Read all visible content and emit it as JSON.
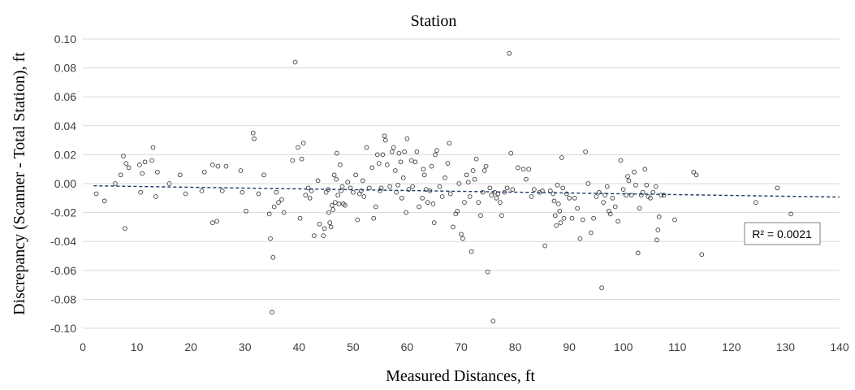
{
  "chart_data": {
    "type": "scatter",
    "title": "Station",
    "xlabel": "Measured Distances, ft",
    "ylabel": "Discrepancy (Scanner - Total Station), ft",
    "xlim": [
      0,
      140
    ],
    "ylim": [
      -0.1,
      0.1
    ],
    "x_ticks": [
      "0",
      "10",
      "20",
      "30",
      "40",
      "50",
      "60",
      "70",
      "80",
      "90",
      "100",
      "110",
      "120",
      "130",
      "140"
    ],
    "y_ticks": [
      "0.10",
      "0.08",
      "0.06",
      "0.04",
      "0.02",
      "0.00",
      "-0.02",
      "-0.04",
      "-0.06",
      "-0.08",
      "-0.10"
    ],
    "grid": "horizontal",
    "trendline": {
      "type": "linear",
      "x": [
        2,
        140
      ],
      "y": [
        -0.0015,
        -0.0093
      ]
    },
    "annotation": "R² = 0.0021",
    "points": [
      [
        2.5,
        -0.007
      ],
      [
        4,
        -0.012
      ],
      [
        6,
        0.0
      ],
      [
        7,
        0.006
      ],
      [
        7.5,
        0.019
      ],
      [
        8,
        0.014
      ],
      [
        7.8,
        -0.031
      ],
      [
        8.5,
        0.011
      ],
      [
        10.5,
        0.013
      ],
      [
        10.7,
        -0.006
      ],
      [
        11,
        0.007
      ],
      [
        11.5,
        0.015
      ],
      [
        12.8,
        0.016
      ],
      [
        13,
        0.025
      ],
      [
        13.8,
        0.008
      ],
      [
        13.5,
        -0.009
      ],
      [
        16,
        0.0
      ],
      [
        18,
        0.006
      ],
      [
        19,
        -0.007
      ],
      [
        22,
        -0.005
      ],
      [
        22.5,
        0.008
      ],
      [
        24,
        0.013
      ],
      [
        24,
        -0.027
      ],
      [
        24.8,
        -0.026
      ],
      [
        25,
        0.012
      ],
      [
        25.8,
        -0.005
      ],
      [
        26.5,
        0.012
      ],
      [
        29.2,
        0.009
      ],
      [
        29.5,
        -0.006
      ],
      [
        30.2,
        -0.019
      ],
      [
        31.5,
        0.035
      ],
      [
        31.7,
        0.031
      ],
      [
        32.5,
        -0.007
      ],
      [
        33.5,
        0.006
      ],
      [
        34.5,
        -0.021
      ],
      [
        34.7,
        -0.038
      ],
      [
        35,
        -0.089
      ],
      [
        35.2,
        -0.051
      ],
      [
        35.4,
        -0.016
      ],
      [
        35.8,
        -0.006
      ],
      [
        36.2,
        -0.013
      ],
      [
        36.8,
        -0.011
      ],
      [
        37.2,
        -0.02
      ],
      [
        38.8,
        0.016
      ],
      [
        39.3,
        0.084
      ],
      [
        39.8,
        0.025
      ],
      [
        40.2,
        -0.024
      ],
      [
        40.5,
        0.017
      ],
      [
        40.8,
        0.028
      ],
      [
        41.2,
        -0.008
      ],
      [
        41.7,
        -0.003
      ],
      [
        42,
        -0.01
      ],
      [
        42.3,
        -0.005
      ],
      [
        42.8,
        -0.036
      ],
      [
        43.5,
        0.002
      ],
      [
        43.8,
        -0.028
      ],
      [
        44.5,
        -0.036
      ],
      [
        44.7,
        -0.031
      ],
      [
        45,
        -0.006
      ],
      [
        45.4,
        -0.004
      ],
      [
        45.5,
        -0.02
      ],
      [
        45.7,
        -0.027
      ],
      [
        45.9,
        -0.03
      ],
      [
        46.1,
        -0.015
      ],
      [
        46.3,
        -0.018
      ],
      [
        46.5,
        0.006
      ],
      [
        46.7,
        -0.013
      ],
      [
        46.9,
        0.003
      ],
      [
        47,
        0.021
      ],
      [
        47.2,
        -0.008
      ],
      [
        47.4,
        -0.014
      ],
      [
        47.6,
        0.013
      ],
      [
        47.8,
        -0.005
      ],
      [
        48,
        -0.002
      ],
      [
        48.2,
        -0.014
      ],
      [
        48.5,
        -0.015
      ],
      [
        49,
        0.001
      ],
      [
        49.5,
        -0.003
      ],
      [
        50,
        -0.006
      ],
      [
        50.5,
        0.006
      ],
      [
        50.8,
        -0.025
      ],
      [
        51.2,
        -0.007
      ],
      [
        51.5,
        -0.005
      ],
      [
        51.8,
        0.002
      ],
      [
        52,
        -0.009
      ],
      [
        52.5,
        0.025
      ],
      [
        53,
        -0.003
      ],
      [
        53.5,
        0.011
      ],
      [
        53.8,
        -0.024
      ],
      [
        54.2,
        -0.016
      ],
      [
        54.5,
        0.02
      ],
      [
        54.8,
        0.014
      ],
      [
        55,
        -0.005
      ],
      [
        55.2,
        -0.003
      ],
      [
        55.5,
        0.02
      ],
      [
        55.8,
        0.033
      ],
      [
        56,
        0.03
      ],
      [
        56.3,
        0.013
      ],
      [
        56.8,
        -0.002
      ],
      [
        57.2,
        0.022
      ],
      [
        57.5,
        0.025
      ],
      [
        57.8,
        0.009
      ],
      [
        58,
        -0.006
      ],
      [
        58.3,
        -0.001
      ],
      [
        58.5,
        0.021
      ],
      [
        58.8,
        0.015
      ],
      [
        59,
        -0.01
      ],
      [
        59.3,
        0.004
      ],
      [
        59.5,
        0.022
      ],
      [
        59.8,
        -0.02
      ],
      [
        60,
        0.031
      ],
      [
        60.3,
        -0.004
      ],
      [
        60.8,
        0.016
      ],
      [
        61,
        -0.002
      ],
      [
        61.5,
        0.015
      ],
      [
        61.8,
        0.022
      ],
      [
        62.2,
        -0.016
      ],
      [
        62.8,
        -0.01
      ],
      [
        63,
        0.01
      ],
      [
        63.2,
        0.006
      ],
      [
        63.5,
        -0.004
      ],
      [
        63.8,
        -0.013
      ],
      [
        64.2,
        -0.005
      ],
      [
        64.5,
        0.012
      ],
      [
        64.8,
        -0.014
      ],
      [
        65,
        -0.027
      ],
      [
        65.2,
        0.02
      ],
      [
        65.5,
        0.023
      ],
      [
        66,
        -0.002
      ],
      [
        66.5,
        -0.009
      ],
      [
        67,
        0.004
      ],
      [
        67.5,
        0.014
      ],
      [
        67.8,
        0.028
      ],
      [
        68,
        -0.007
      ],
      [
        68.5,
        -0.03
      ],
      [
        69,
        -0.021
      ],
      [
        69.3,
        -0.019
      ],
      [
        69.6,
        0.0
      ],
      [
        70,
        -0.035
      ],
      [
        70.3,
        -0.038
      ],
      [
        70.6,
        -0.013
      ],
      [
        71,
        0.006
      ],
      [
        71.3,
        0.001
      ],
      [
        71.6,
        -0.009
      ],
      [
        71.9,
        -0.047
      ],
      [
        72.2,
        0.009
      ],
      [
        72.5,
        0.003
      ],
      [
        72.8,
        0.017
      ],
      [
        73.2,
        -0.013
      ],
      [
        73.6,
        -0.022
      ],
      [
        74,
        -0.006
      ],
      [
        74.3,
        0.009
      ],
      [
        74.6,
        0.012
      ],
      [
        74.9,
        -0.061
      ],
      [
        75.3,
        -0.003
      ],
      [
        75.6,
        -0.008
      ],
      [
        75.9,
        -0.095
      ],
      [
        76.2,
        -0.006
      ],
      [
        76.5,
        -0.01
      ],
      [
        76.8,
        -0.007
      ],
      [
        77.2,
        -0.013
      ],
      [
        77.5,
        -0.022
      ],
      [
        78,
        -0.006
      ],
      [
        78.5,
        -0.003
      ],
      [
        78.9,
        0.09
      ],
      [
        79.2,
        0.021
      ],
      [
        79.5,
        -0.004
      ],
      [
        80.5,
        0.011
      ],
      [
        81.5,
        0.01
      ],
      [
        82,
        0.003
      ],
      [
        82.5,
        0.01
      ],
      [
        83,
        -0.009
      ],
      [
        83.5,
        -0.004
      ],
      [
        84.5,
        -0.006
      ],
      [
        85,
        -0.005
      ],
      [
        85.5,
        -0.043
      ],
      [
        86.5,
        -0.005
      ],
      [
        87,
        -0.007
      ],
      [
        87.2,
        -0.012
      ],
      [
        87.4,
        -0.022
      ],
      [
        87.6,
        -0.029
      ],
      [
        87.8,
        -0.001
      ],
      [
        88,
        -0.014
      ],
      [
        88.2,
        -0.019
      ],
      [
        88.4,
        -0.027
      ],
      [
        88.6,
        0.018
      ],
      [
        88.8,
        -0.003
      ],
      [
        89,
        -0.024
      ],
      [
        89.5,
        -0.007
      ],
      [
        90,
        -0.01
      ],
      [
        90.5,
        -0.024
      ],
      [
        91,
        -0.01
      ],
      [
        91.5,
        -0.017
      ],
      [
        92,
        -0.038
      ],
      [
        92.5,
        -0.025
      ],
      [
        93,
        0.022
      ],
      [
        93.5,
        0.0
      ],
      [
        94,
        -0.034
      ],
      [
        94.5,
        -0.024
      ],
      [
        95,
        -0.009
      ],
      [
        95.5,
        -0.006
      ],
      [
        96,
        -0.072
      ],
      [
        96.3,
        -0.013
      ],
      [
        96.6,
        -0.008
      ],
      [
        97,
        -0.002
      ],
      [
        97.3,
        -0.019
      ],
      [
        97.6,
        -0.021
      ],
      [
        98,
        -0.01
      ],
      [
        98.5,
        -0.016
      ],
      [
        99,
        -0.026
      ],
      [
        99.5,
        0.016
      ],
      [
        100,
        -0.004
      ],
      [
        100.5,
        -0.008
      ],
      [
        100.8,
        0.005
      ],
      [
        101,
        0.002
      ],
      [
        101.5,
        -0.008
      ],
      [
        102,
        0.008
      ],
      [
        102.3,
        -0.001
      ],
      [
        102.7,
        -0.048
      ],
      [
        103,
        -0.017
      ],
      [
        103.3,
        -0.008
      ],
      [
        103.6,
        -0.006
      ],
      [
        104,
        0.01
      ],
      [
        104.3,
        -0.001
      ],
      [
        104.6,
        -0.009
      ],
      [
        105,
        -0.01
      ],
      [
        105.5,
        -0.006
      ],
      [
        106,
        -0.002
      ],
      [
        106.2,
        -0.039
      ],
      [
        106.4,
        -0.032
      ],
      [
        106.6,
        -0.023
      ],
      [
        107,
        -0.008
      ],
      [
        107.5,
        -0.008
      ],
      [
        109.5,
        -0.025
      ],
      [
        113,
        0.008
      ],
      [
        113.5,
        0.006
      ],
      [
        114.5,
        -0.049
      ],
      [
        124.5,
        -0.013
      ],
      [
        128.5,
        -0.003
      ],
      [
        131,
        -0.021
      ]
    ]
  }
}
